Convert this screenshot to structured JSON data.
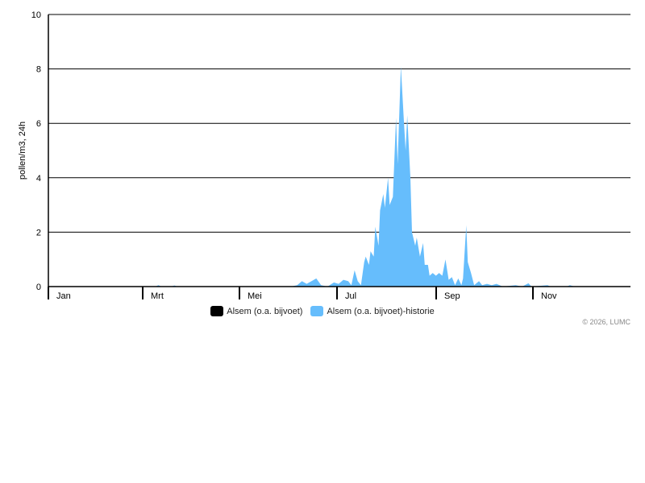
{
  "chart_data": {
    "type": "area",
    "ylabel": "pollen/m3, 24h",
    "ylim": [
      0,
      10
    ],
    "yticks": [
      "0",
      "2",
      "4",
      "6",
      "8",
      "10"
    ],
    "ytick_values": [
      0,
      2,
      4,
      6,
      8,
      10
    ],
    "xlim": [
      "2026-01-01",
      "2026-12-31"
    ],
    "xticks": [
      {
        "label": "Jan",
        "date": "2026-01-01"
      },
      {
        "label": "Mrt",
        "date": "2026-03-01"
      },
      {
        "label": "Mei",
        "date": "2026-05-01"
      },
      {
        "label": "Jul",
        "date": "2026-07-01"
      },
      {
        "label": "Sep",
        "date": "2026-09-01"
      },
      {
        "label": "Nov",
        "date": "2026-11-01"
      }
    ],
    "grid": true,
    "legend_position": "bottom",
    "series": [
      {
        "name": "Alsem (o.a. bijvoet)",
        "color": "#000000",
        "points": []
      },
      {
        "name": "Alsem (o.a. bijvoet)-historie",
        "color": "#66bdfc",
        "points": [
          [
            "2026-01-01",
            0
          ],
          [
            "2026-03-09",
            0
          ],
          [
            "2026-03-11",
            0.05
          ],
          [
            "2026-03-13",
            0
          ],
          [
            "2026-03-19",
            0
          ],
          [
            "2026-03-21",
            0.04
          ],
          [
            "2026-03-23",
            0
          ],
          [
            "2026-06-02",
            0
          ],
          [
            "2026-06-06",
            0.05
          ],
          [
            "2026-06-09",
            0.2
          ],
          [
            "2026-06-12",
            0.1
          ],
          [
            "2026-06-15",
            0.2
          ],
          [
            "2026-06-18",
            0.3
          ],
          [
            "2026-06-21",
            0.05
          ],
          [
            "2026-06-25",
            0
          ],
          [
            "2026-06-29",
            0.15
          ],
          [
            "2026-07-02",
            0.1
          ],
          [
            "2026-07-05",
            0.25
          ],
          [
            "2026-07-08",
            0.2
          ],
          [
            "2026-07-10",
            0.05
          ],
          [
            "2026-07-12",
            0.6
          ],
          [
            "2026-07-14",
            0.2
          ],
          [
            "2026-07-16",
            0.05
          ],
          [
            "2026-07-18",
            0.9
          ],
          [
            "2026-07-19",
            1.1
          ],
          [
            "2026-07-21",
            0.8
          ],
          [
            "2026-07-22",
            1.3
          ],
          [
            "2026-07-24",
            1.1
          ],
          [
            "2026-07-25",
            2.2
          ],
          [
            "2026-07-27",
            1.5
          ],
          [
            "2026-07-28",
            2.8
          ],
          [
            "2026-07-30",
            3.4
          ],
          [
            "2026-07-31",
            2.9
          ],
          [
            "2026-08-02",
            4.0
          ],
          [
            "2026-08-03",
            3.0
          ],
          [
            "2026-08-05",
            3.3
          ],
          [
            "2026-08-07",
            6.2
          ],
          [
            "2026-08-08",
            4.5
          ],
          [
            "2026-08-10",
            8.1
          ],
          [
            "2026-08-12",
            6.0
          ],
          [
            "2026-08-13",
            5.0
          ],
          [
            "2026-08-14",
            6.3
          ],
          [
            "2026-08-16",
            4.0
          ],
          [
            "2026-08-17",
            2.0
          ],
          [
            "2026-08-19",
            1.5
          ],
          [
            "2026-08-20",
            1.8
          ],
          [
            "2026-08-22",
            1.1
          ],
          [
            "2026-08-24",
            1.6
          ],
          [
            "2026-08-25",
            0.8
          ],
          [
            "2026-08-27",
            0.8
          ],
          [
            "2026-08-28",
            0.4
          ],
          [
            "2026-08-30",
            0.5
          ],
          [
            "2026-09-01",
            0.4
          ],
          [
            "2026-09-03",
            0.5
          ],
          [
            "2026-09-05",
            0.4
          ],
          [
            "2026-09-07",
            1.0
          ],
          [
            "2026-09-09",
            0.25
          ],
          [
            "2026-09-11",
            0.35
          ],
          [
            "2026-09-13",
            0.05
          ],
          [
            "2026-09-15",
            0.3
          ],
          [
            "2026-09-17",
            0.05
          ],
          [
            "2026-09-18",
            0.3
          ],
          [
            "2026-09-20",
            2.25
          ],
          [
            "2026-09-21",
            0.9
          ],
          [
            "2026-09-23",
            0.5
          ],
          [
            "2026-09-25",
            0.05
          ],
          [
            "2026-09-28",
            0.2
          ],
          [
            "2026-09-30",
            0.05
          ],
          [
            "2026-10-03",
            0.1
          ],
          [
            "2026-10-06",
            0.05
          ],
          [
            "2026-10-09",
            0.1
          ],
          [
            "2026-10-13",
            0
          ],
          [
            "2026-10-21",
            0.05
          ],
          [
            "2026-10-25",
            0
          ],
          [
            "2026-10-29",
            0.12
          ],
          [
            "2026-10-31",
            0
          ],
          [
            "2026-11-10",
            0.05
          ],
          [
            "2026-11-12",
            0
          ],
          [
            "2026-11-22",
            0
          ],
          [
            "2026-11-24",
            0.05
          ],
          [
            "2026-11-27",
            0
          ],
          [
            "2026-12-31",
            0
          ]
        ]
      }
    ]
  },
  "credit": "© 2026, LUMC"
}
